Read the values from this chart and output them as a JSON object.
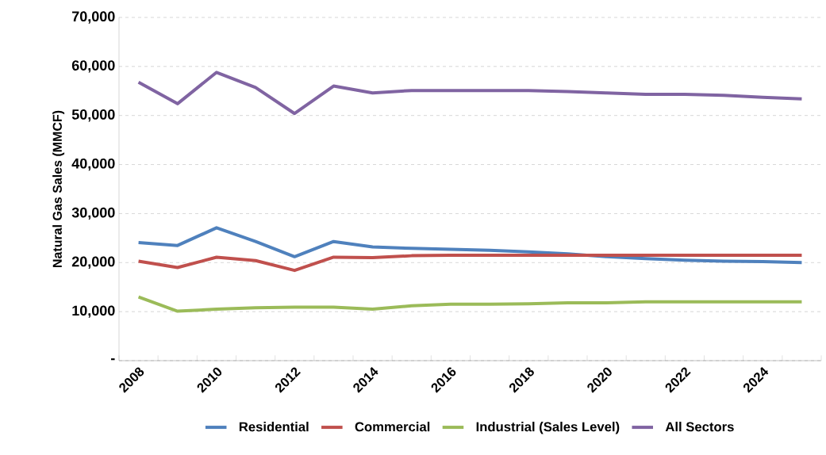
{
  "chart_data": {
    "type": "line",
    "ylabel": "Natural Gas Sales (MMCF)",
    "categories": [
      "2008",
      null,
      "2010",
      null,
      "2012",
      null,
      "2014",
      null,
      "2016",
      null,
      "2018",
      null,
      "2020",
      null,
      "2022",
      null,
      "2024",
      null
    ],
    "series": [
      {
        "name": "Residential",
        "color": "#4f81bd",
        "values": [
          24100,
          23500,
          27100,
          24300,
          21200,
          24300,
          23200,
          22900,
          22700,
          22500,
          22200,
          21800,
          21200,
          20800,
          20500,
          20300,
          20200,
          20000
        ]
      },
      {
        "name": "Commercial",
        "color": "#c0504d",
        "values": [
          20300,
          19000,
          21100,
          20400,
          18400,
          21100,
          21000,
          21400,
          21500,
          21500,
          21500,
          21500,
          21500,
          21500,
          21500,
          21500,
          21500,
          21500
        ]
      },
      {
        "name": "Industrial (Sales Level)",
        "color": "#9bbb59",
        "values": [
          13000,
          10100,
          10500,
          10800,
          10900,
          10900,
          10500,
          11200,
          11500,
          11500,
          11600,
          11800,
          11800,
          12000,
          12000,
          12000,
          12000,
          12000
        ]
      },
      {
        "name": "All Sectors",
        "color": "#8064a2",
        "values": [
          56800,
          52400,
          58800,
          55700,
          50400,
          56000,
          54600,
          55100,
          55100,
          55100,
          55100,
          54900,
          54600,
          54300,
          54300,
          54100,
          53700,
          53400
        ]
      }
    ],
    "ylim": [
      0,
      70000
    ],
    "yticks": [
      {
        "value": 0,
        "label": "-"
      },
      {
        "value": 10000,
        "label": "10,000"
      },
      {
        "value": 20000,
        "label": "20,000"
      },
      {
        "value": 30000,
        "label": "30,000"
      },
      {
        "value": 40000,
        "label": "40,000"
      },
      {
        "value": 50000,
        "label": "50,000"
      },
      {
        "value": 60000,
        "label": "60,000"
      },
      {
        "value": 70000,
        "label": "70,000"
      }
    ],
    "grid": "y",
    "legend": "bottom",
    "marker": "none",
    "line_style": "solid"
  }
}
